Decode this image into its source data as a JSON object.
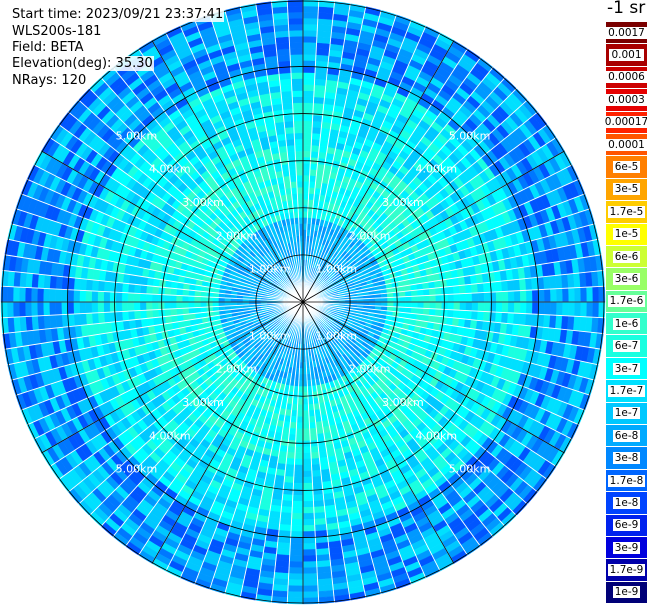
{
  "info": {
    "start_time": "Start time: 2023/09/21 23:37:41",
    "device": "WLS200s-181",
    "field": "Field: BETA",
    "elevation": "Elevation(deg): 35.30",
    "nrays": "NRays: 120"
  },
  "colorbar": {
    "unit_label": "-1 sr",
    "entries": [
      {
        "label": "0.0017",
        "color": "#7a0000"
      },
      {
        "label": "0.001",
        "color": "#a80000"
      },
      {
        "label": "0.0006",
        "color": "#cc0000"
      },
      {
        "label": "0.0003",
        "color": "#e60000"
      },
      {
        "label": "0.00017",
        "color": "#ff2200"
      },
      {
        "label": "0.0001",
        "color": "#ff5500"
      },
      {
        "label": "6e-5",
        "color": "#ff7f00"
      },
      {
        "label": "3e-5",
        "color": "#ffa500"
      },
      {
        "label": "1.7e-5",
        "color": "#ffcc00"
      },
      {
        "label": "1e-5",
        "color": "#ffff00"
      },
      {
        "label": "6e-6",
        "color": "#ccff33"
      },
      {
        "label": "3e-6",
        "color": "#99ff66"
      },
      {
        "label": "1.7e-6",
        "color": "#66ff99"
      },
      {
        "label": "1e-6",
        "color": "#33ffcc"
      },
      {
        "label": "6e-7",
        "color": "#1affe0"
      },
      {
        "label": "3e-7",
        "color": "#00ffff"
      },
      {
        "label": "1.7e-7",
        "color": "#00e0ff"
      },
      {
        "label": "1e-7",
        "color": "#00c8ff"
      },
      {
        "label": "6e-8",
        "color": "#00aaff"
      },
      {
        "label": "3e-8",
        "color": "#0088ff"
      },
      {
        "label": "1.7e-8",
        "color": "#0066ff"
      },
      {
        "label": "1e-8",
        "color": "#0044ff"
      },
      {
        "label": "6e-9",
        "color": "#0022ee"
      },
      {
        "label": "3e-9",
        "color": "#0000dd"
      },
      {
        "label": "1.7e-9",
        "color": "#0000aa"
      },
      {
        "label": "1e-9",
        "color": "#000077"
      }
    ]
  },
  "chart_data": {
    "type": "heatmap",
    "projection": "polar (plan position indicator)",
    "n_rays": 120,
    "range_rings_km": [
      1,
      2,
      3,
      4,
      5
    ],
    "ring_labels": [
      "1.00km",
      "2.00km",
      "3.00km",
      "4.00km",
      "5.00km"
    ],
    "max_range_km": 5.0,
    "spoke_count": 12,
    "value_scale": "log",
    "zones": [
      {
        "from_km": 0.0,
        "to_km": 1.4,
        "dominant_value": "6e-8"
      },
      {
        "from_km": 1.4,
        "to_km": 2.6,
        "dominant_value": "3e-7"
      },
      {
        "from_km": 2.6,
        "to_km": 3.8,
        "dominant_value": "1.7e-7"
      },
      {
        "from_km": 3.8,
        "to_km": 5.0,
        "dominant_value": "3e-8"
      }
    ]
  }
}
